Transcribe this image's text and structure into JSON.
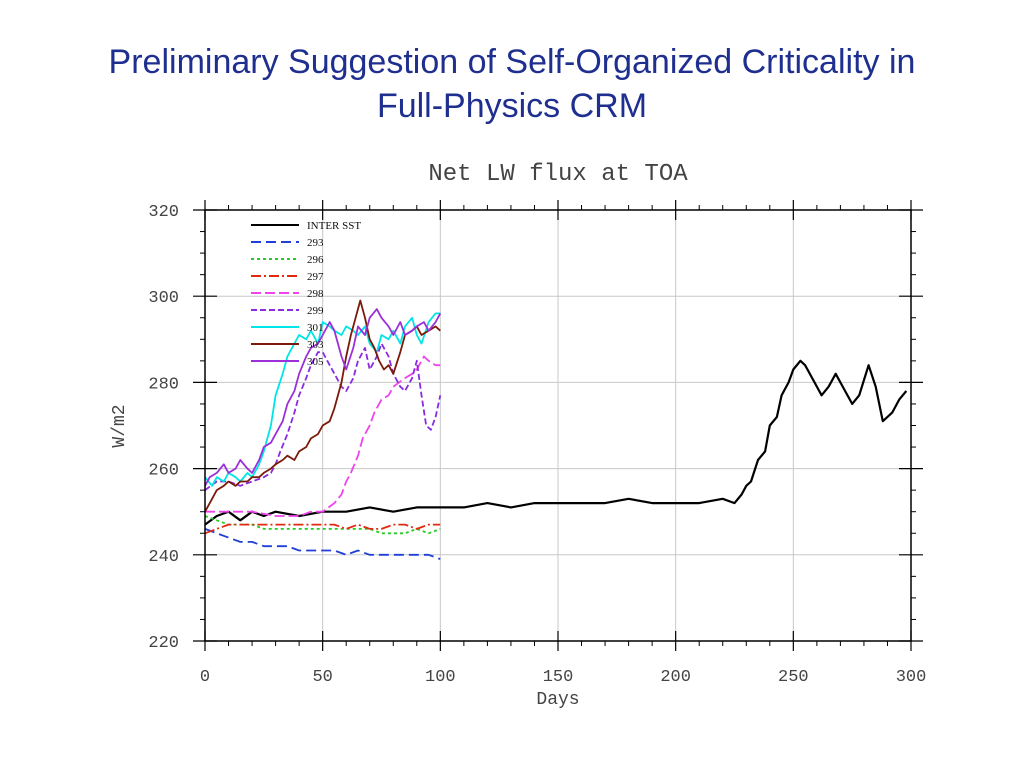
{
  "slide": {
    "title_line1": "Preliminary  Suggestion of Self-Organized Criticality in",
    "title_line2": "Full-Physics CRM"
  },
  "chart_data": {
    "type": "line",
    "title": "Net LW flux at TOA",
    "xlabel": "Days",
    "ylabel": "W/m2",
    "xlim": [
      0,
      300
    ],
    "ylim": [
      220,
      320
    ],
    "xticks": [
      0,
      50,
      100,
      150,
      200,
      250,
      300
    ],
    "yticks": [
      220,
      240,
      260,
      280,
      300,
      320
    ],
    "grid": true,
    "legend_position": "top-left",
    "series": [
      {
        "name": "INTER SST",
        "color": "#000000",
        "dash": "",
        "x": [
          0,
          5,
          10,
          15,
          20,
          25,
          30,
          40,
          50,
          60,
          70,
          80,
          90,
          100,
          110,
          120,
          130,
          140,
          150,
          160,
          170,
          180,
          190,
          200,
          210,
          220,
          225,
          228,
          230,
          232,
          235,
          238,
          240,
          243,
          245,
          248,
          250,
          253,
          255,
          258,
          262,
          265,
          268,
          272,
          275,
          278,
          282,
          285,
          288,
          292,
          295,
          298
        ],
        "y": [
          247,
          249,
          250,
          248,
          250,
          249,
          250,
          249,
          250,
          250,
          251,
          250,
          251,
          251,
          251,
          252,
          251,
          252,
          252,
          252,
          252,
          253,
          252,
          252,
          252,
          253,
          252,
          254,
          256,
          257,
          262,
          264,
          270,
          272,
          277,
          280,
          283,
          285,
          284,
          281,
          277,
          279,
          282,
          278,
          275,
          277,
          284,
          279,
          271,
          273,
          276,
          278
        ]
      },
      {
        "name": "293",
        "color": "#1f3fd8",
        "dash": "10,5",
        "x": [
          0,
          5,
          10,
          15,
          20,
          25,
          30,
          35,
          40,
          45,
          50,
          55,
          60,
          65,
          70,
          75,
          80,
          85,
          90,
          95,
          100
        ],
        "y": [
          246,
          245,
          244,
          243,
          243,
          242,
          242,
          242,
          241,
          241,
          241,
          241,
          240,
          241,
          240,
          240,
          240,
          240,
          240,
          240,
          239
        ]
      },
      {
        "name": "296",
        "color": "#22cc22",
        "dash": "3,3",
        "x": [
          0,
          5,
          10,
          15,
          20,
          25,
          30,
          35,
          40,
          45,
          50,
          55,
          60,
          65,
          70,
          75,
          80,
          85,
          90,
          95,
          100
        ],
        "y": [
          249,
          248,
          247,
          247,
          247,
          246,
          246,
          246,
          246,
          246,
          246,
          246,
          246,
          246,
          246,
          245,
          245,
          245,
          246,
          245,
          246
        ]
      },
      {
        "name": "297",
        "color": "#e02a10",
        "dash": "10,3,2,3",
        "x": [
          0,
          5,
          10,
          15,
          20,
          25,
          30,
          35,
          40,
          45,
          50,
          55,
          60,
          65,
          70,
          75,
          80,
          85,
          90,
          95,
          100
        ],
        "y": [
          245,
          246,
          247,
          247,
          247,
          247,
          247,
          247,
          247,
          247,
          247,
          247,
          246,
          247,
          246,
          246,
          247,
          247,
          246,
          247,
          247
        ]
      },
      {
        "name": "298",
        "color": "#ee44ee",
        "dash": "10,4",
        "x": [
          0,
          10,
          20,
          30,
          40,
          45,
          50,
          55,
          58,
          60,
          62,
          65,
          67,
          70,
          72,
          75,
          78,
          80,
          85,
          88,
          90,
          93,
          95,
          98,
          100
        ],
        "y": [
          250,
          250,
          250,
          249,
          249,
          250,
          250,
          252,
          254,
          257,
          259,
          263,
          267,
          270,
          273,
          276,
          277,
          279,
          281,
          282,
          283,
          286,
          285,
          284,
          284
        ]
      },
      {
        "name": "299",
        "color": "#8a2be2",
        "dash": "6,3",
        "x": [
          0,
          5,
          10,
          15,
          20,
          25,
          28,
          30,
          32,
          35,
          38,
          40,
          43,
          45,
          48,
          50,
          53,
          55,
          58,
          60,
          63,
          65,
          68,
          70,
          73,
          75,
          78,
          80,
          83,
          85,
          88,
          90,
          92,
          94,
          96,
          98,
          100
        ],
        "y": [
          255,
          257,
          257,
          256,
          257,
          258,
          259,
          261,
          264,
          268,
          273,
          277,
          281,
          284,
          287,
          287,
          284,
          282,
          279,
          278,
          281,
          285,
          288,
          283,
          286,
          289,
          286,
          282,
          279,
          278,
          281,
          285,
          277,
          270,
          269,
          272,
          277
        ]
      },
      {
        "name": "301",
        "color": "#00e5e5",
        "dash": "",
        "x": [
          0,
          3,
          5,
          8,
          10,
          13,
          15,
          18,
          20,
          23,
          25,
          28,
          30,
          33,
          35,
          38,
          40,
          43,
          45,
          48,
          50,
          53,
          55,
          58,
          60,
          63,
          65,
          68,
          70,
          73,
          75,
          78,
          80,
          83,
          85,
          88,
          90,
          92,
          95,
          98,
          100
        ],
        "y": [
          258,
          256,
          258,
          257,
          259,
          258,
          257,
          259,
          258,
          261,
          264,
          270,
          277,
          282,
          286,
          289,
          291,
          290,
          292,
          289,
          294,
          293,
          292,
          291,
          293,
          292,
          291,
          293,
          289,
          287,
          291,
          290,
          292,
          289,
          293,
          295,
          291,
          289,
          294,
          296,
          296
        ]
      },
      {
        "name": "303",
        "color": "#7a1a0a",
        "dash": "",
        "x": [
          0,
          3,
          5,
          8,
          10,
          13,
          15,
          18,
          20,
          23,
          25,
          28,
          30,
          33,
          35,
          38,
          40,
          43,
          45,
          48,
          50,
          53,
          55,
          58,
          60,
          62,
          64,
          66,
          68,
          70,
          72,
          74,
          76,
          78,
          80,
          83,
          85,
          88,
          90,
          92,
          95,
          98,
          100
        ],
        "y": [
          250,
          253,
          255,
          256,
          257,
          256,
          257,
          257,
          258,
          258,
          259,
          260,
          261,
          262,
          263,
          262,
          264,
          265,
          267,
          268,
          270,
          271,
          274,
          280,
          286,
          291,
          295,
          299,
          295,
          290,
          288,
          285,
          283,
          284,
          282,
          287,
          291,
          292,
          293,
          291,
          292,
          293,
          292
        ]
      },
      {
        "name": "305",
        "color": "#9b30d9",
        "dash": "",
        "x": [
          0,
          2,
          5,
          8,
          10,
          13,
          15,
          18,
          20,
          23,
          25,
          28,
          30,
          33,
          35,
          38,
          40,
          43,
          45,
          48,
          50,
          53,
          55,
          58,
          60,
          63,
          65,
          68,
          70,
          73,
          75,
          78,
          80,
          83,
          85,
          88,
          90,
          93,
          95,
          98,
          100
        ],
        "y": [
          256,
          258,
          259,
          261,
          259,
          260,
          262,
          260,
          259,
          262,
          265,
          266,
          268,
          271,
          275,
          278,
          282,
          286,
          288,
          289,
          291,
          294,
          292,
          286,
          283,
          288,
          293,
          291,
          295,
          297,
          295,
          293,
          291,
          294,
          291,
          292,
          293,
          294,
          292,
          294,
          296
        ]
      }
    ]
  }
}
